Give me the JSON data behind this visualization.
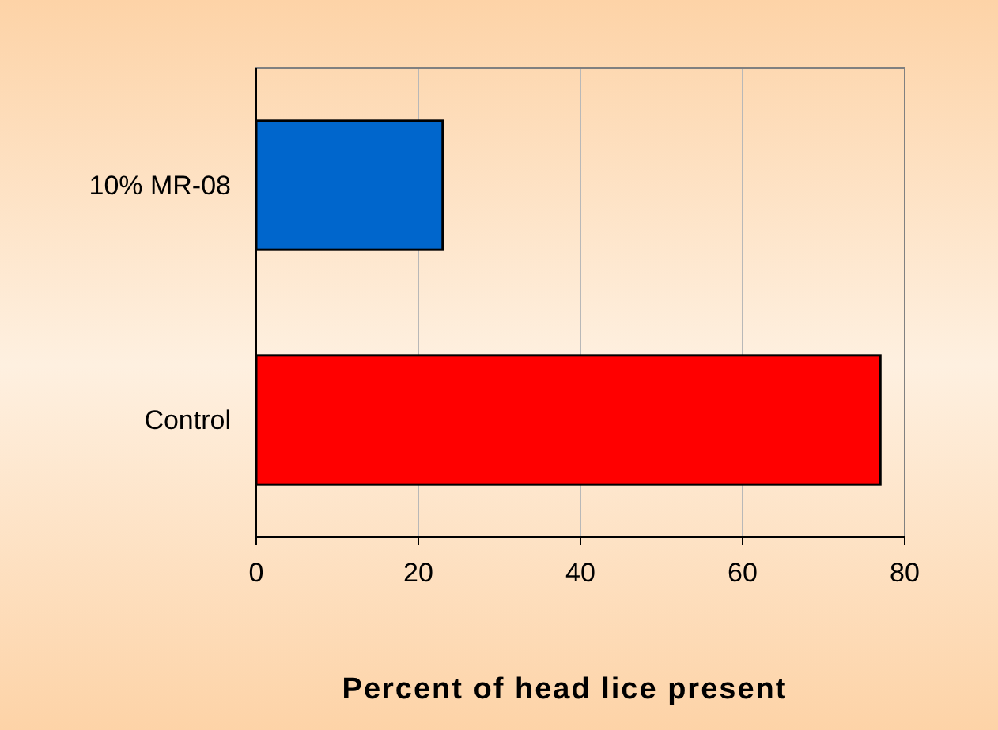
{
  "chart_data": {
    "type": "bar",
    "orientation": "horizontal",
    "xlabel": "Percent of head lice present",
    "categories": [
      "10% MR-08",
      "Control"
    ],
    "values": [
      23,
      77
    ],
    "colors": [
      "#0066cc",
      "#ff0000"
    ],
    "xlim": [
      0,
      80
    ],
    "xticks": [
      0,
      20,
      40,
      60,
      80
    ],
    "grid": "x"
  }
}
